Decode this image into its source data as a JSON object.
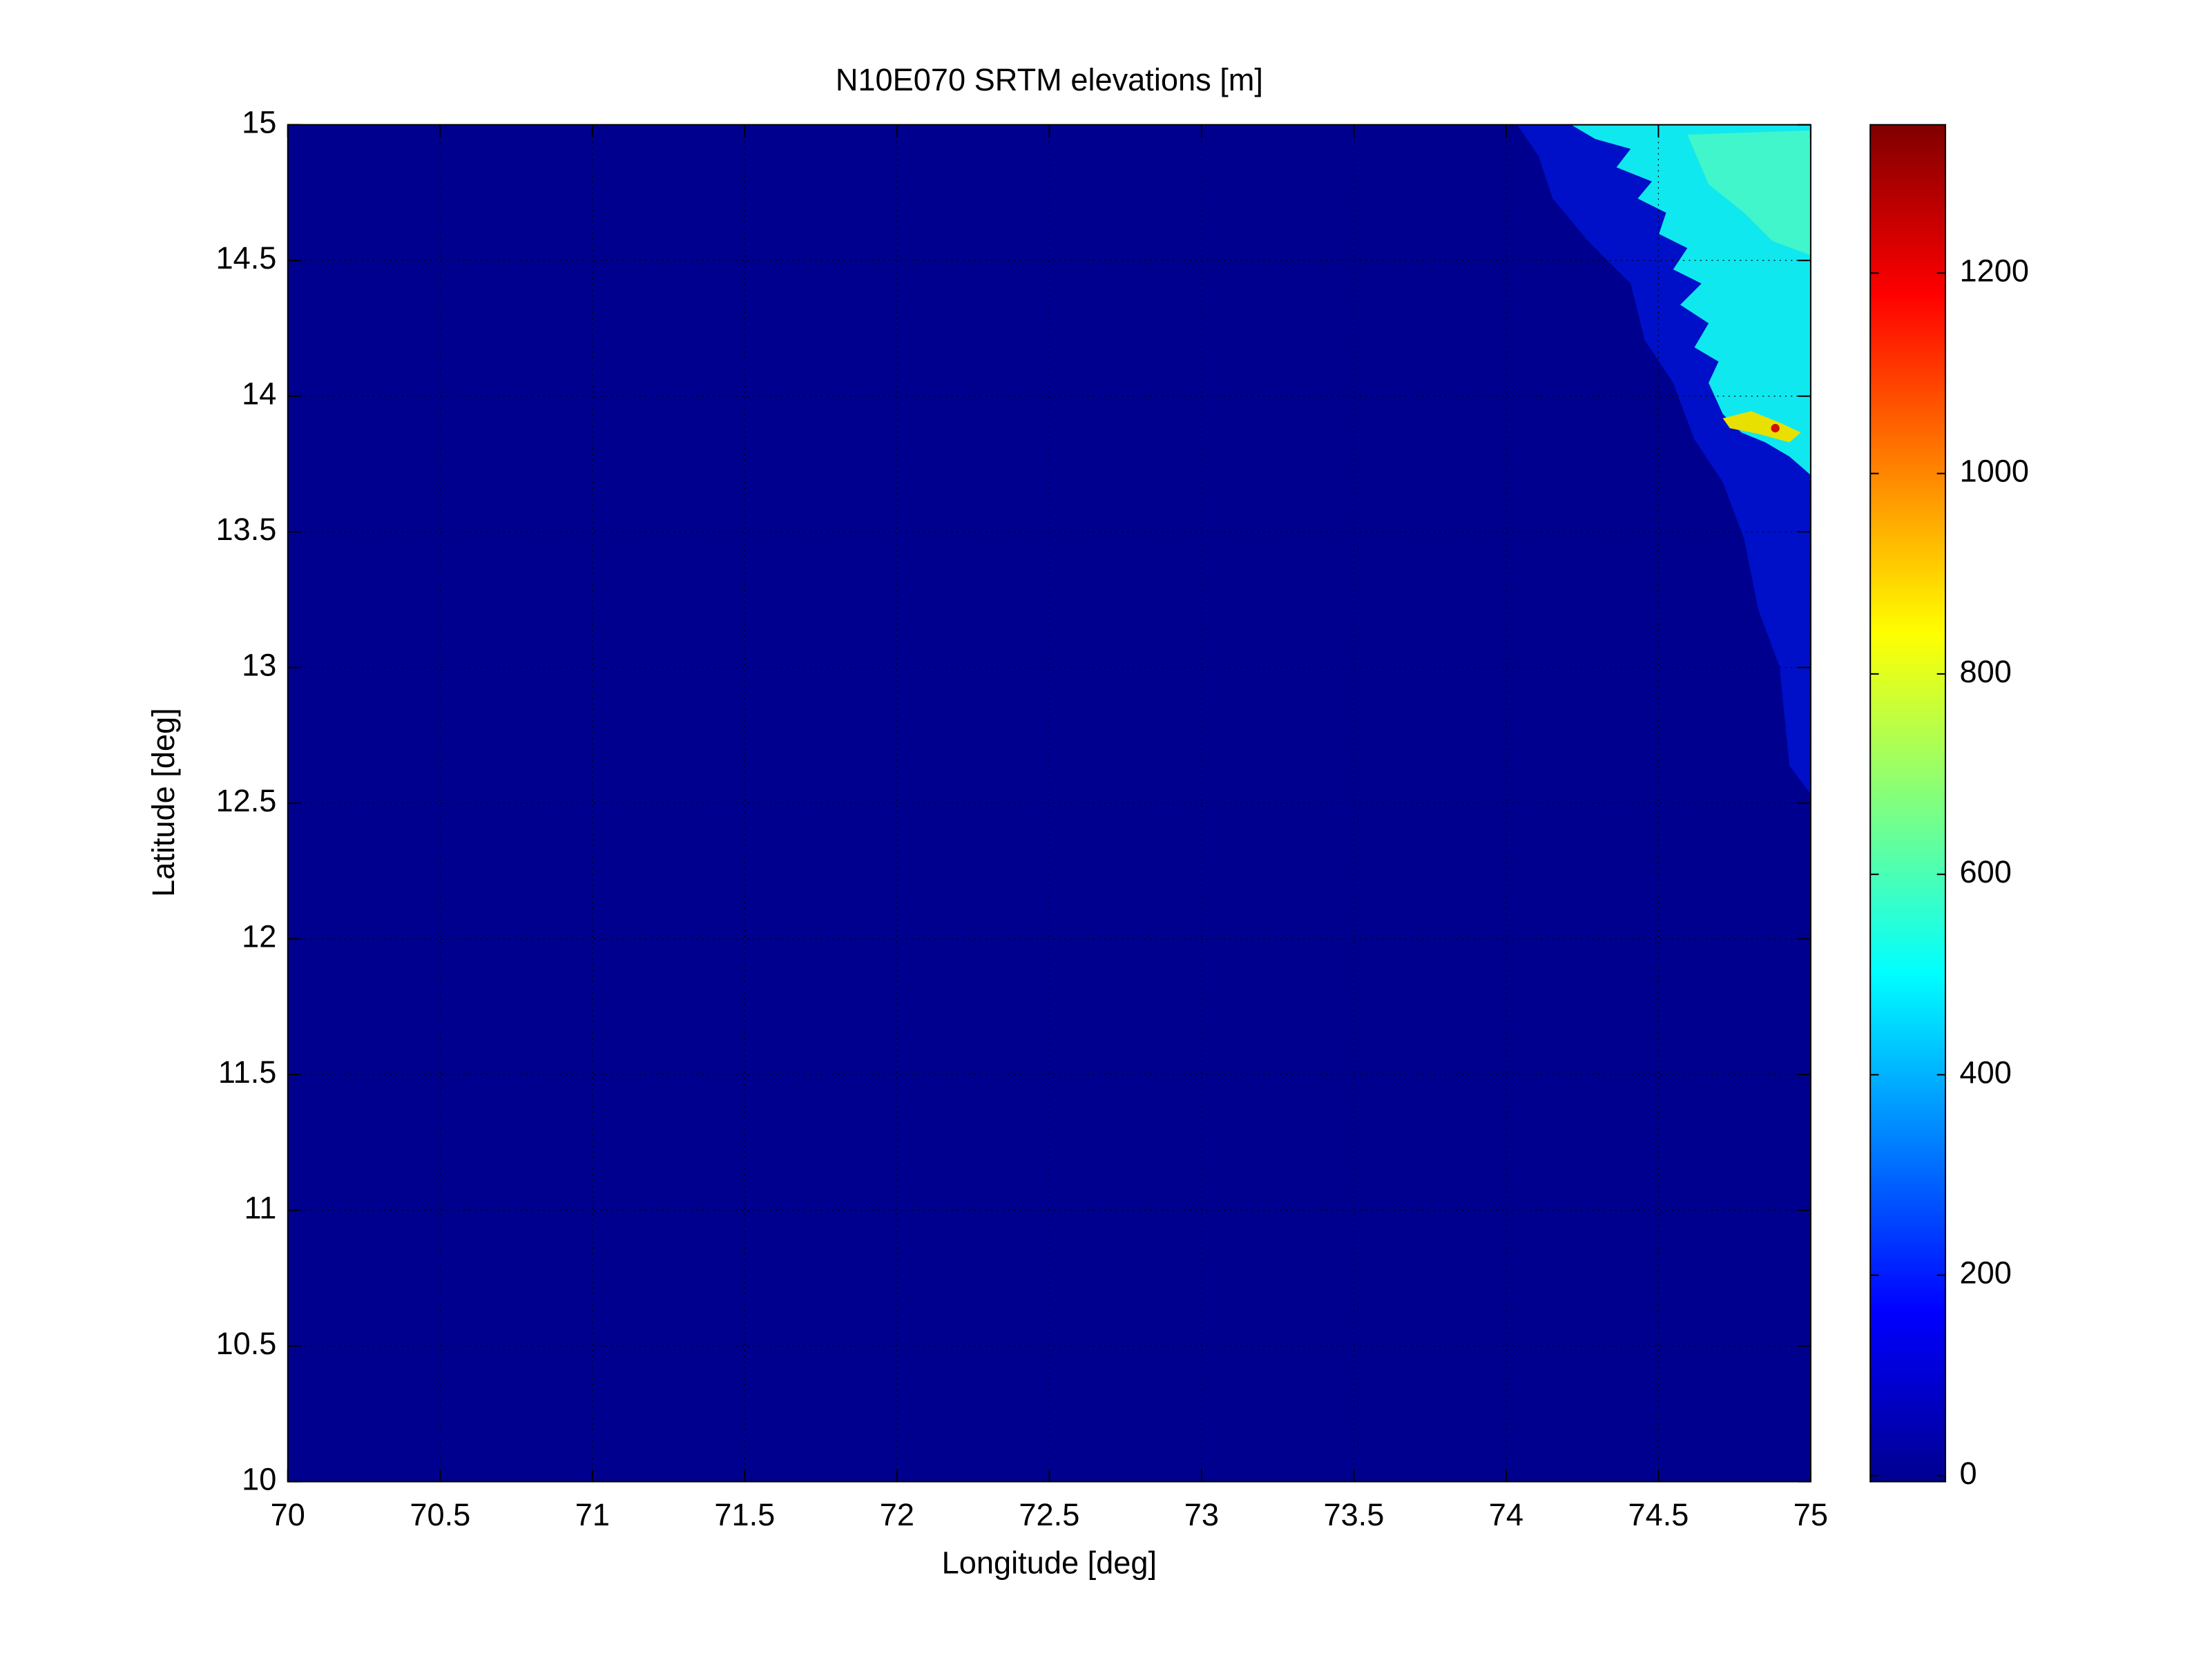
{
  "chart_data": {
    "type": "heatmap",
    "title": "N10E070 SRTM elevations [m]",
    "xlabel": "Longitude [deg]",
    "ylabel": "Latitude [deg]",
    "xlim": [
      70,
      75
    ],
    "xticks": [
      70,
      70.5,
      71,
      71.5,
      72,
      72.5,
      73,
      73.5,
      74,
      74.5,
      75
    ],
    "ylim": [
      10,
      15
    ],
    "yticks": [
      10,
      10.5,
      11,
      11.5,
      12,
      12.5,
      13,
      13.5,
      14,
      14.5,
      15
    ],
    "colormap": "jet",
    "clim": [
      -6,
      1348
    ],
    "cticks": [
      0,
      200,
      400,
      600,
      800,
      1000,
      1200
    ],
    "grid": true
  }
}
